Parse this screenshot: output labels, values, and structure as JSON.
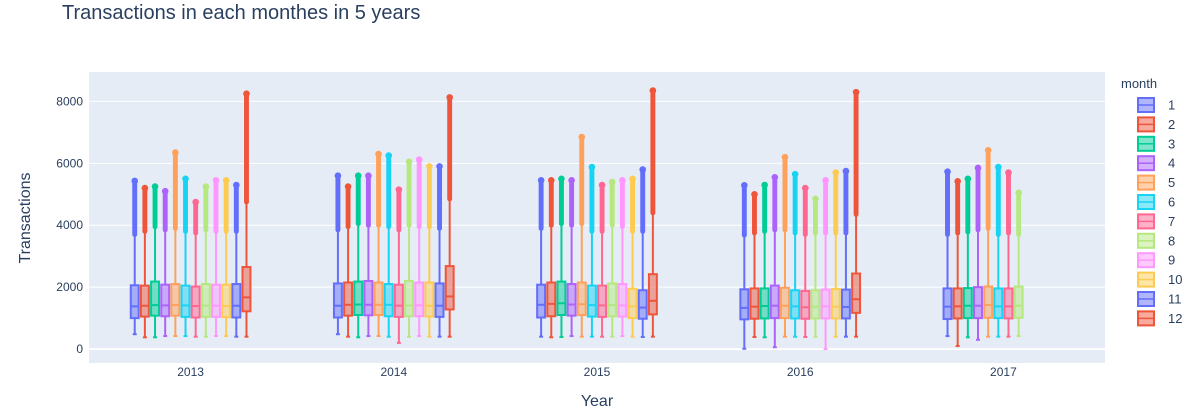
{
  "chart_data": {
    "type": "box",
    "title": "Transactions in each monthes in 5 years",
    "xlabel": "Year",
    "ylabel": "Transactions",
    "categories": [
      "2013",
      "2014",
      "2015",
      "2016",
      "2017"
    ],
    "ylim": [
      -450,
      8950
    ],
    "yticks": [
      0,
      2000,
      4000,
      6000,
      8000
    ],
    "grid": true,
    "legend_title": "month",
    "legend_position": "right",
    "colors": [
      "#636efa",
      "#ef553b",
      "#00cc96",
      "#ab63fa",
      "#ffa15a",
      "#19d3f3",
      "#ff6692",
      "#b6e880",
      "#ff97ff",
      "#fecb52",
      "#636efa",
      "#ef553b"
    ],
    "series": [
      {
        "name": "1",
        "boxes": [
          {
            "year": "2013",
            "min": 480,
            "q1": 1000,
            "median": 1380,
            "q3": 2060,
            "upper_fence": 3700,
            "outlier_top": 5430
          },
          {
            "year": "2014",
            "min": 480,
            "q1": 1020,
            "median": 1400,
            "q3": 2120,
            "upper_fence": 3850,
            "outlier_top": 5600
          },
          {
            "year": "2015",
            "min": 400,
            "q1": 1020,
            "median": 1430,
            "q3": 2080,
            "upper_fence": 3900,
            "outlier_top": 5450
          },
          {
            "year": "2016",
            "min": 10,
            "q1": 960,
            "median": 1330,
            "q3": 1930,
            "upper_fence": 3680,
            "outlier_top": 5290
          },
          {
            "year": "2017",
            "min": 420,
            "q1": 970,
            "median": 1370,
            "q3": 1960,
            "upper_fence": 3700,
            "outlier_top": 5730
          }
        ]
      },
      {
        "name": "2",
        "boxes": [
          {
            "year": "2013",
            "min": 380,
            "q1": 1050,
            "median": 1400,
            "q3": 2050,
            "upper_fence": 3800,
            "outlier_top": 5200
          },
          {
            "year": "2014",
            "min": 400,
            "q1": 1080,
            "median": 1430,
            "q3": 2150,
            "upper_fence": 3950,
            "outlier_top": 5250
          },
          {
            "year": "2015",
            "min": 380,
            "q1": 1060,
            "median": 1460,
            "q3": 2150,
            "upper_fence": 4000,
            "outlier_top": 5450
          },
          {
            "year": "2016",
            "min": 390,
            "q1": 980,
            "median": 1370,
            "q3": 1960,
            "upper_fence": 3750,
            "outlier_top": 5000
          },
          {
            "year": "2017",
            "min": 100,
            "q1": 990,
            "median": 1380,
            "q3": 1960,
            "upper_fence": 3750,
            "outlier_top": 5420
          }
        ]
      },
      {
        "name": "3",
        "boxes": [
          {
            "year": "2013",
            "min": 380,
            "q1": 1080,
            "median": 1420,
            "q3": 2180,
            "upper_fence": 3950,
            "outlier_top": 5250
          },
          {
            "year": "2014",
            "min": 380,
            "q1": 1100,
            "median": 1440,
            "q3": 2180,
            "upper_fence": 4050,
            "outlier_top": 5600
          },
          {
            "year": "2015",
            "min": 390,
            "q1": 1100,
            "median": 1480,
            "q3": 2180,
            "upper_fence": 4050,
            "outlier_top": 5500
          },
          {
            "year": "2016",
            "min": 380,
            "q1": 990,
            "median": 1390,
            "q3": 1960,
            "upper_fence": 3800,
            "outlier_top": 5300
          },
          {
            "year": "2017",
            "min": 380,
            "q1": 1000,
            "median": 1400,
            "q3": 1970,
            "upper_fence": 3780,
            "outlier_top": 5500
          }
        ]
      },
      {
        "name": "4",
        "boxes": [
          {
            "year": "2013",
            "min": 420,
            "q1": 1060,
            "median": 1410,
            "q3": 2080,
            "upper_fence": 3850,
            "outlier_top": 5100
          },
          {
            "year": "2014",
            "min": 420,
            "q1": 1090,
            "median": 1430,
            "q3": 2200,
            "upper_fence": 4000,
            "outlier_top": 5600
          },
          {
            "year": "2015",
            "min": 420,
            "q1": 1080,
            "median": 1440,
            "q3": 2100,
            "upper_fence": 4000,
            "outlier_top": 5450
          },
          {
            "year": "2016",
            "min": 60,
            "q1": 1000,
            "median": 1400,
            "q3": 2050,
            "upper_fence": 3850,
            "outlier_top": 5550
          },
          {
            "year": "2017",
            "min": 300,
            "q1": 1000,
            "median": 1400,
            "q3": 2000,
            "upper_fence": 3850,
            "outlier_top": 5850
          }
        ]
      },
      {
        "name": "5",
        "boxes": [
          {
            "year": "2013",
            "min": 420,
            "q1": 1080,
            "median": 1420,
            "q3": 2100,
            "upper_fence": 3900,
            "outlier_top": 6350
          },
          {
            "year": "2014",
            "min": 420,
            "q1": 1100,
            "median": 1430,
            "q3": 2150,
            "upper_fence": 4000,
            "outlier_top": 6300
          },
          {
            "year": "2015",
            "min": 400,
            "q1": 1100,
            "median": 1450,
            "q3": 2150,
            "upper_fence": 4050,
            "outlier_top": 6850
          },
          {
            "year": "2016",
            "min": 400,
            "q1": 1000,
            "median": 1400,
            "q3": 1980,
            "upper_fence": 3850,
            "outlier_top": 6200
          },
          {
            "year": "2017",
            "min": 400,
            "q1": 1010,
            "median": 1420,
            "q3": 2020,
            "upper_fence": 3900,
            "outlier_top": 6420
          }
        ]
      },
      {
        "name": "6",
        "boxes": [
          {
            "year": "2013",
            "min": 420,
            "q1": 1040,
            "median": 1410,
            "q3": 2050,
            "upper_fence": 3800,
            "outlier_top": 5500
          },
          {
            "year": "2014",
            "min": 400,
            "q1": 1060,
            "median": 1430,
            "q3": 2100,
            "upper_fence": 3950,
            "outlier_top": 6250
          },
          {
            "year": "2015",
            "min": 400,
            "q1": 1050,
            "median": 1420,
            "q3": 2050,
            "upper_fence": 3800,
            "outlier_top": 5880
          },
          {
            "year": "2016",
            "min": 400,
            "q1": 990,
            "median": 1380,
            "q3": 1900,
            "upper_fence": 3750,
            "outlier_top": 5650
          },
          {
            "year": "2017",
            "min": 400,
            "q1": 1000,
            "median": 1380,
            "q3": 1960,
            "upper_fence": 3700,
            "outlier_top": 5880
          }
        ]
      },
      {
        "name": "7",
        "boxes": [
          {
            "year": "2013",
            "min": 400,
            "q1": 1020,
            "median": 1390,
            "q3": 2020,
            "upper_fence": 3750,
            "outlier_top": 4750
          },
          {
            "year": "2014",
            "min": 200,
            "q1": 1040,
            "median": 1400,
            "q3": 2080,
            "upper_fence": 3850,
            "outlier_top": 5150
          },
          {
            "year": "2015",
            "min": 400,
            "q1": 1040,
            "median": 1410,
            "q3": 2050,
            "upper_fence": 3800,
            "outlier_top": 5300
          },
          {
            "year": "2016",
            "min": 390,
            "q1": 980,
            "median": 1350,
            "q3": 1880,
            "upper_fence": 3700,
            "outlier_top": 5200
          },
          {
            "year": "2017",
            "min": 400,
            "q1": 990,
            "median": 1380,
            "q3": 1960,
            "upper_fence": 3750,
            "outlier_top": 5700
          }
        ]
      },
      {
        "name": "8",
        "boxes": [
          {
            "year": "2013",
            "min": 400,
            "q1": 1040,
            "median": 1400,
            "q3": 2100,
            "upper_fence": 3850,
            "outlier_top": 5250
          },
          {
            "year": "2014",
            "min": 400,
            "q1": 1060,
            "median": 1410,
            "q3": 2200,
            "upper_fence": 4000,
            "outlier_top": 6050
          },
          {
            "year": "2015",
            "min": 400,
            "q1": 1060,
            "median": 1420,
            "q3": 2120,
            "upper_fence": 4000,
            "outlier_top": 5400
          },
          {
            "year": "2016",
            "min": 400,
            "q1": 990,
            "median": 1370,
            "q3": 1900,
            "upper_fence": 3750,
            "outlier_top": 4850
          },
          {
            "year": "2017",
            "min": 420,
            "q1": 1010,
            "median": 1400,
            "q3": 2020,
            "upper_fence": 3700,
            "outlier_top": 5050
          }
        ]
      },
      {
        "name": "9",
        "boxes": [
          {
            "year": "2013",
            "min": 420,
            "q1": 1040,
            "median": 1400,
            "q3": 2080,
            "upper_fence": 3800,
            "outlier_top": 5450
          },
          {
            "year": "2014",
            "min": 420,
            "q1": 1060,
            "median": 1410,
            "q3": 2150,
            "upper_fence": 3950,
            "outlier_top": 6120
          },
          {
            "year": "2015",
            "min": 420,
            "q1": 1050,
            "median": 1410,
            "q3": 2100,
            "upper_fence": 3950,
            "outlier_top": 5450
          },
          {
            "year": "2016",
            "min": 0,
            "q1": 990,
            "median": 1380,
            "q3": 1920,
            "upper_fence": 3750,
            "outlier_top": 5450
          }
        ]
      },
      {
        "name": "10",
        "boxes": [
          {
            "year": "2013",
            "min": 420,
            "q1": 1030,
            "median": 1390,
            "q3": 2080,
            "upper_fence": 3800,
            "outlier_top": 5450
          },
          {
            "year": "2014",
            "min": 400,
            "q1": 1050,
            "median": 1400,
            "q3": 2150,
            "upper_fence": 3950,
            "outlier_top": 5900
          },
          {
            "year": "2015",
            "min": 400,
            "q1": 1000,
            "median": 1380,
            "q3": 1950,
            "upper_fence": 3800,
            "outlier_top": 5500
          },
          {
            "year": "2016",
            "min": 400,
            "q1": 990,
            "median": 1370,
            "q3": 1940,
            "upper_fence": 3750,
            "outlier_top": 5700
          }
        ]
      },
      {
        "name": "11",
        "boxes": [
          {
            "year": "2013",
            "min": 400,
            "q1": 1020,
            "median": 1400,
            "q3": 2100,
            "upper_fence": 3800,
            "outlier_top": 5300
          },
          {
            "year": "2014",
            "min": 400,
            "q1": 1040,
            "median": 1400,
            "q3": 2120,
            "upper_fence": 3900,
            "outlier_top": 5900
          },
          {
            "year": "2015",
            "min": 390,
            "q1": 980,
            "median": 1340,
            "q3": 1900,
            "upper_fence": 3800,
            "outlier_top": 5800
          },
          {
            "year": "2016",
            "min": 400,
            "q1": 990,
            "median": 1360,
            "q3": 1920,
            "upper_fence": 3750,
            "outlier_top": 5750
          }
        ]
      },
      {
        "name": "12",
        "boxes": [
          {
            "year": "2013",
            "min": 400,
            "q1": 1220,
            "median": 1670,
            "q3": 2650,
            "upper_fence": 4750,
            "outlier_top": 8250
          },
          {
            "year": "2014",
            "min": 400,
            "q1": 1280,
            "median": 1700,
            "q3": 2680,
            "upper_fence": 4850,
            "outlier_top": 8130
          },
          {
            "year": "2015",
            "min": 400,
            "q1": 1120,
            "median": 1560,
            "q3": 2420,
            "upper_fence": 4400,
            "outlier_top": 8350
          },
          {
            "year": "2016",
            "min": 400,
            "q1": 1170,
            "median": 1610,
            "q3": 2440,
            "upper_fence": 4350,
            "outlier_top": 8300
          }
        ]
      }
    ]
  }
}
